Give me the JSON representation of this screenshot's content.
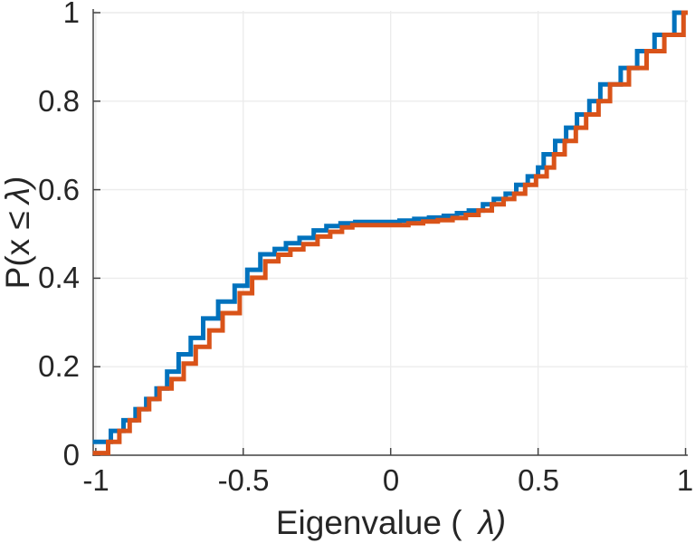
{
  "chart_data": {
    "type": "step",
    "title": "",
    "xlabel": "Eigenvalue (  λ)",
    "ylabel": "P(x ≤ λ)",
    "xlabel_parts": [
      "Eigenvalue (",
      "λ)"
    ],
    "ylabel_parts": [
      "P(x ≤",
      "λ)"
    ],
    "xlim": [
      -1.01,
      1.01
    ],
    "ylim": [
      0,
      1
    ],
    "xticks": [
      -1,
      -0.5,
      0,
      0.5,
      1
    ],
    "xtick_labels": [
      "-1",
      "-0.5",
      "0",
      "0.5",
      "1"
    ],
    "yticks": [
      0,
      0.2,
      0.4,
      0.6,
      0.8,
      1
    ],
    "ytick_labels": [
      "0",
      "0.2",
      "0.4",
      "0.6",
      "0.8",
      "1"
    ],
    "grid": true,
    "legend": null,
    "series": [
      {
        "name": "ecdf-step-blue",
        "color": "#0072BD",
        "start": [
          -1.01,
          0.03
        ],
        "points": [
          [
            -0.949,
            0.055
          ],
          [
            -0.906,
            0.079
          ],
          [
            -0.865,
            0.104
          ],
          [
            -0.829,
            0.127
          ],
          [
            -0.794,
            0.151
          ],
          [
            -0.758,
            0.189
          ],
          [
            -0.719,
            0.228
          ],
          [
            -0.678,
            0.265
          ],
          [
            -0.636,
            0.309
          ],
          [
            -0.585,
            0.347
          ],
          [
            -0.529,
            0.383
          ],
          [
            -0.486,
            0.419
          ],
          [
            -0.442,
            0.454
          ],
          [
            -0.393,
            0.466
          ],
          [
            -0.355,
            0.479
          ],
          [
            -0.309,
            0.491
          ],
          [
            -0.261,
            0.508
          ],
          [
            -0.218,
            0.518
          ],
          [
            -0.17,
            0.524
          ],
          [
            -0.12,
            0.527
          ],
          [
            0.03,
            0.53
          ],
          [
            0.08,
            0.534
          ],
          [
            0.13,
            0.537
          ],
          [
            0.18,
            0.541
          ],
          [
            0.225,
            0.547
          ],
          [
            0.265,
            0.553
          ],
          [
            0.313,
            0.567
          ],
          [
            0.35,
            0.579
          ],
          [
            0.39,
            0.591
          ],
          [
            0.426,
            0.611
          ],
          [
            0.465,
            0.63
          ],
          [
            0.5,
            0.65
          ],
          [
            0.519,
            0.68
          ],
          [
            0.558,
            0.71
          ],
          [
            0.595,
            0.74
          ],
          [
            0.632,
            0.77
          ],
          [
            0.674,
            0.8
          ],
          [
            0.711,
            0.838
          ],
          [
            0.78,
            0.875
          ],
          [
            0.836,
            0.913
          ],
          [
            0.895,
            0.95
          ],
          [
            0.962,
            1.0
          ]
        ]
      },
      {
        "name": "ecdf-step-orange",
        "color": "#D95319",
        "start": [
          -1.01,
          0.005
        ],
        "points": [
          [
            -0.958,
            0.03
          ],
          [
            -0.92,
            0.055
          ],
          [
            -0.885,
            0.079
          ],
          [
            -0.853,
            0.104
          ],
          [
            -0.819,
            0.127
          ],
          [
            -0.784,
            0.151
          ],
          [
            -0.743,
            0.172
          ],
          [
            -0.702,
            0.207
          ],
          [
            -0.661,
            0.245
          ],
          [
            -0.615,
            0.282
          ],
          [
            -0.57,
            0.321
          ],
          [
            -0.512,
            0.366
          ],
          [
            -0.47,
            0.401
          ],
          [
            -0.425,
            0.438
          ],
          [
            -0.381,
            0.453
          ],
          [
            -0.34,
            0.465
          ],
          [
            -0.296,
            0.477
          ],
          [
            -0.248,
            0.494
          ],
          [
            -0.205,
            0.505
          ],
          [
            -0.165,
            0.515
          ],
          [
            -0.13,
            0.52
          ],
          [
            0.06,
            0.524
          ],
          [
            0.11,
            0.528
          ],
          [
            0.16,
            0.531
          ],
          [
            0.21,
            0.536
          ],
          [
            0.255,
            0.543
          ],
          [
            0.298,
            0.553
          ],
          [
            0.343,
            0.567
          ],
          [
            0.383,
            0.579
          ],
          [
            0.419,
            0.591
          ],
          [
            0.456,
            0.611
          ],
          [
            0.493,
            0.63
          ],
          [
            0.529,
            0.65
          ],
          [
            0.554,
            0.68
          ],
          [
            0.59,
            0.71
          ],
          [
            0.628,
            0.74
          ],
          [
            0.663,
            0.77
          ],
          [
            0.705,
            0.8
          ],
          [
            0.744,
            0.838
          ],
          [
            0.808,
            0.875
          ],
          [
            0.868,
            0.913
          ],
          [
            0.928,
            0.95
          ],
          [
            0.993,
            1.0
          ]
        ]
      }
    ]
  },
  "colors": {
    "background": "#ffffff",
    "grid": "#ececec",
    "axis": "#444444",
    "tick_label": "#262626",
    "series_blue": "#0072BD",
    "series_orange": "#D95319"
  }
}
